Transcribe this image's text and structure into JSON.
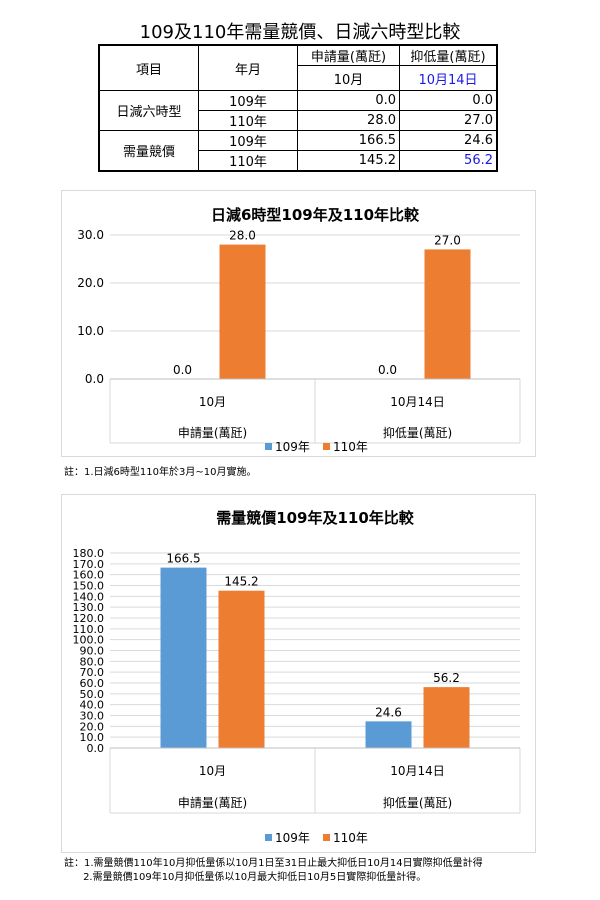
{
  "table": {
    "title": "109及110年需量競價、日減六時型比較",
    "header": {
      "item": "項目",
      "year": "年月",
      "applied": "申請量(萬瓩)",
      "suppressed": "抑低量(萬瓩)",
      "applied_sub": "10月",
      "suppressed_sub": "10月14日"
    },
    "groups": [
      {
        "name": "日減六時型",
        "rows": [
          {
            "year": "109年",
            "applied": "0.0",
            "suppressed": "0.0"
          },
          {
            "year": "110年",
            "applied": "28.0",
            "suppressed": "27.0"
          }
        ]
      },
      {
        "name": "需量競價",
        "rows": [
          {
            "year": "109年",
            "applied": "166.5",
            "suppressed": "24.6"
          },
          {
            "year": "110年",
            "applied": "145.2",
            "suppressed": "56.2"
          }
        ]
      }
    ]
  },
  "colors": {
    "series_109": "#5b9bd5",
    "series_110": "#ed7d31",
    "grid": "#d9d9d9",
    "highlight": "#1a1ae6"
  },
  "chart_data": [
    {
      "type": "bar",
      "title": "日減6時型109年及110年比較",
      "categories": [
        "10月",
        "10月14日"
      ],
      "category_groups": [
        "申請量(萬瓩)",
        "抑低量(萬瓩)"
      ],
      "series": [
        {
          "name": "109年",
          "values": [
            0.0,
            0.0
          ]
        },
        {
          "name": "110年",
          "values": [
            28.0,
            27.0
          ]
        }
      ],
      "ylim": [
        0,
        30
      ],
      "yticks": [
        "0.0",
        "10.0",
        "20.0",
        "30.0"
      ],
      "grid": true,
      "legend": "bottom"
    },
    {
      "type": "bar",
      "title": "需量競價109年及110年比較",
      "categories": [
        "10月",
        "10月14日"
      ],
      "category_groups": [
        "申請量(萬瓩)",
        "抑低量(萬瓩)"
      ],
      "series": [
        {
          "name": "109年",
          "values": [
            166.5,
            24.6
          ]
        },
        {
          "name": "110年",
          "values": [
            145.2,
            56.2
          ]
        }
      ],
      "ylim": [
        0,
        180
      ],
      "yticks": [
        "0.0",
        "10.0",
        "20.0",
        "30.0",
        "40.0",
        "50.0",
        "60.0",
        "70.0",
        "80.0",
        "90.0",
        "100.0",
        "110.0",
        "120.0",
        "130.0",
        "140.0",
        "150.0",
        "160.0",
        "170.0",
        "180.0"
      ],
      "grid": true,
      "legend": "bottom"
    }
  ],
  "notes": {
    "chart1": "註：1.日減6時型110年於3月~10月實施。",
    "chart2": "註：1.需量競價110年10月抑低量係以10月1日至31日止最大抑低日10月14日實際抑低量計得\n      2.需量競價109年10月抑低量係以10月最大抑低日10月5日實際抑低量計得。"
  }
}
